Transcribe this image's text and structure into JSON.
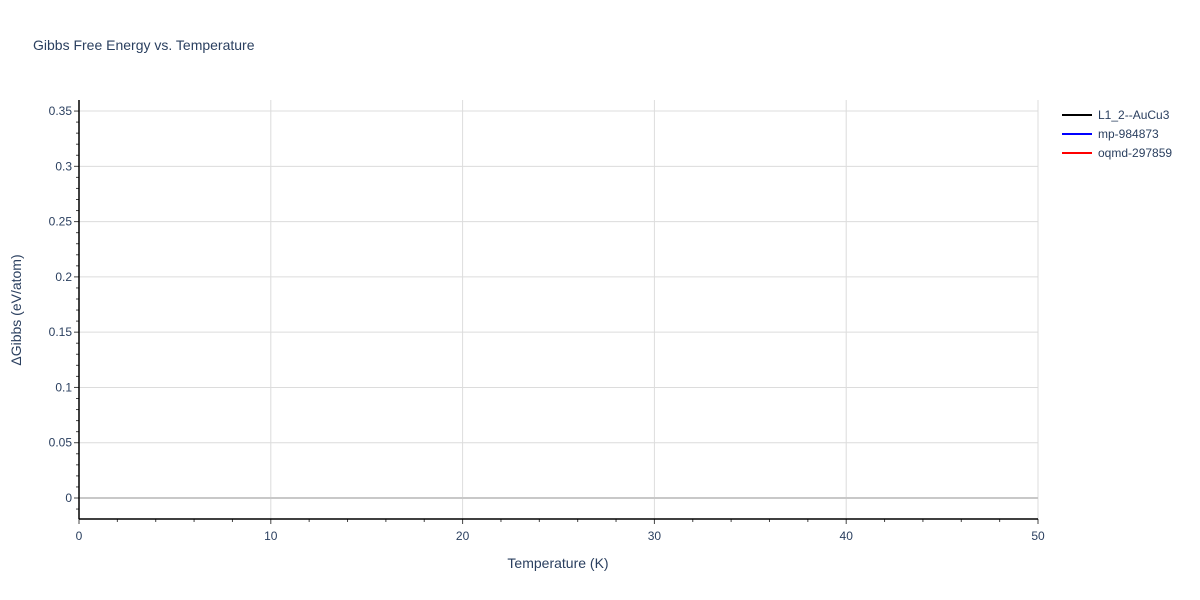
{
  "chart_data": {
    "type": "line",
    "title": "Gibbs Free Energy vs. Temperature",
    "xlabel": "Temperature (K)",
    "ylabel": "ΔGibbs (eV/atom)",
    "xlim": [
      0,
      50
    ],
    "ylim": [
      -0.019,
      0.36
    ],
    "x_ticks": [
      "0",
      "10",
      "20",
      "30",
      "40",
      "50"
    ],
    "y_ticks": [
      "0",
      "0.05",
      "0.1",
      "0.15",
      "0.2",
      "0.25",
      "0.3",
      "0.35"
    ],
    "grid": true,
    "legend_position": "top-right",
    "series": [
      {
        "name": "L1_2--AuCu3",
        "color": "#000000",
        "x": [],
        "y": []
      },
      {
        "name": "mp-984873",
        "color": "#0000ff",
        "x": [],
        "y": []
      },
      {
        "name": "oqmd-297859",
        "color": "#ff0000",
        "x": [],
        "y": []
      }
    ]
  }
}
